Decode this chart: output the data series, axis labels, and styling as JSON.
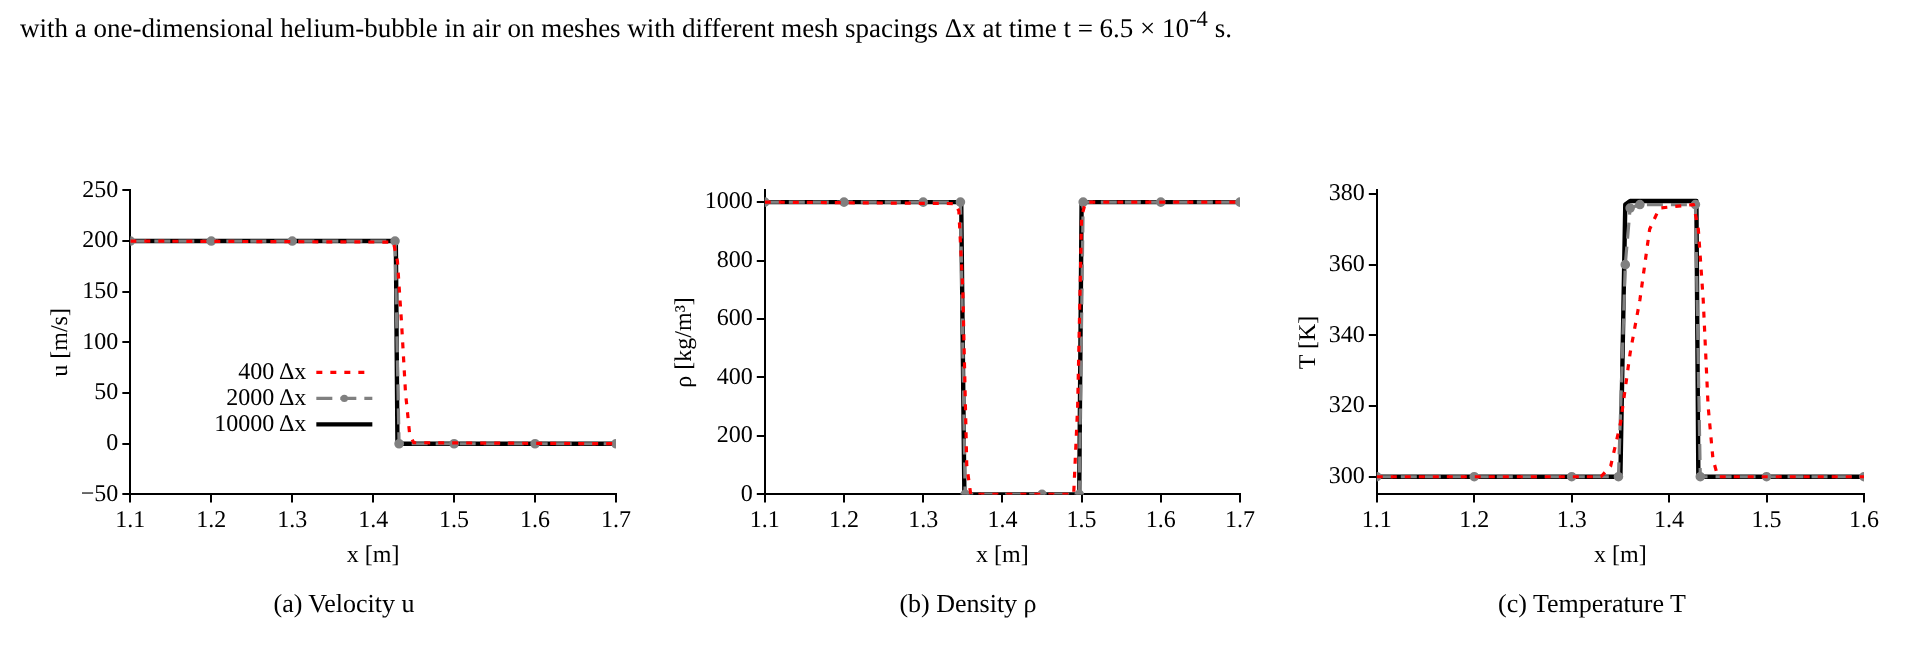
{
  "chart_data": [
    {
      "type": "line",
      "title": "(a) Velocity u",
      "xlabel": "x [m]",
      "ylabel": "u [m/s]",
      "annotations": [
        "with a one-dimensional helium-bubble in air on meshes with different mesh spacings Δx at time t = 6.5 × 10$^{-4}$ s."
      ],
      "xlim": [
        1.1,
        1.7
      ],
      "xticks": [
        1.1,
        1.2,
        1.3,
        1.4,
        1.5,
        1.6,
        1.7
      ],
      "ylim": [
        -50,
        250
      ],
      "yticks": [
        -50,
        0,
        50,
        100,
        150,
        200,
        250
      ],
      "grid": false,
      "legend": "center left",
      "series": [
        {
          "name": "400 Δx",
          "color": "#ff0000",
          "line_style": "dotted",
          "x": [
            1.1,
            1.425,
            1.43,
            1.435,
            1.44,
            1.445,
            1.45,
            1.7
          ],
          "values": [
            200,
            199,
            180,
            120,
            50,
            10,
            1,
            0
          ]
        },
        {
          "name": "2000 Δx",
          "color": "#808080",
          "line_style": "dashed",
          "marker": "circle",
          "x": [
            1.1,
            1.2,
            1.3,
            1.427,
            1.432,
            1.5,
            1.6,
            1.7
          ],
          "values": [
            200,
            200,
            200,
            200,
            0,
            0,
            0,
            0
          ]
        },
        {
          "name": "10000 Δx",
          "color": "#000000",
          "line_style": "solid",
          "x": [
            1.1,
            1.428,
            1.43,
            1.7
          ],
          "values": [
            200,
            200,
            0,
            0
          ]
        }
      ]
    },
    {
      "type": "line",
      "title": "(b) Density ρ",
      "xlabel": "x [m]",
      "ylabel": "ρ [kg/m³]",
      "xlim": [
        1.1,
        1.7
      ],
      "xticks": [
        1.1,
        1.2,
        1.3,
        1.4,
        1.5,
        1.6,
        1.7
      ],
      "ylim": [
        0,
        1040
      ],
      "yticks": [
        0,
        200,
        400,
        600,
        800,
        1000
      ],
      "grid": false,
      "legend": false,
      "series": [
        {
          "color": "#ff0000",
          "line_style": "dotted",
          "x": [
            1.1,
            1.34,
            1.345,
            1.35,
            1.355,
            1.36,
            1.49,
            1.495,
            1.5,
            1.505,
            1.7
          ],
          "values": [
            1000,
            995,
            970,
            700,
            100,
            0,
            0,
            300,
            950,
            1000,
            1000
          ]
        },
        {
          "color": "#808080",
          "line_style": "dashed",
          "marker": "circle",
          "x": [
            1.1,
            1.2,
            1.3,
            1.347,
            1.353,
            1.45,
            1.497,
            1.502,
            1.6,
            1.7
          ],
          "values": [
            1000,
            1000,
            1000,
            1000,
            0,
            0,
            0,
            1000,
            1000,
            1000
          ]
        },
        {
          "color": "#000000",
          "line_style": "solid",
          "x": [
            1.1,
            1.348,
            1.352,
            1.497,
            1.5,
            1.7
          ],
          "values": [
            1000,
            1000,
            0,
            0,
            1000,
            1000
          ]
        }
      ]
    },
    {
      "type": "line",
      "title": "(c) Temperature T",
      "xlabel": "x [m]",
      "ylabel": "T [K]",
      "xlim": [
        1.1,
        1.6
      ],
      "xticks": [
        1.1,
        1.2,
        1.3,
        1.4,
        1.5,
        1.6
      ],
      "ylim": [
        295,
        381
      ],
      "yticks": [
        300,
        320,
        340,
        360,
        380
      ],
      "grid": false,
      "legend": false,
      "series": [
        {
          "color": "#ff0000",
          "line_style": "dotted",
          "x": [
            1.1,
            1.33,
            1.34,
            1.35,
            1.36,
            1.37,
            1.38,
            1.39,
            1.425,
            1.43,
            1.435,
            1.44,
            1.445,
            1.45,
            1.6
          ],
          "values": [
            300,
            300,
            303,
            315,
            335,
            350,
            370,
            376,
            377,
            370,
            350,
            320,
            305,
            300,
            300
          ]
        },
        {
          "color": "#808080",
          "line_style": "dashed",
          "marker": "circle",
          "x": [
            1.1,
            1.2,
            1.3,
            1.348,
            1.355,
            1.36,
            1.37,
            1.427,
            1.432,
            1.5,
            1.6
          ],
          "values": [
            300,
            300,
            300,
            300,
            360,
            376,
            377,
            377,
            300,
            300,
            300
          ]
        },
        {
          "color": "#000000",
          "line_style": "solid",
          "x": [
            1.1,
            1.35,
            1.355,
            1.36,
            1.428,
            1.43,
            1.6
          ],
          "values": [
            300,
            300,
            377,
            378,
            378,
            300,
            300
          ]
        }
      ]
    }
  ]
}
